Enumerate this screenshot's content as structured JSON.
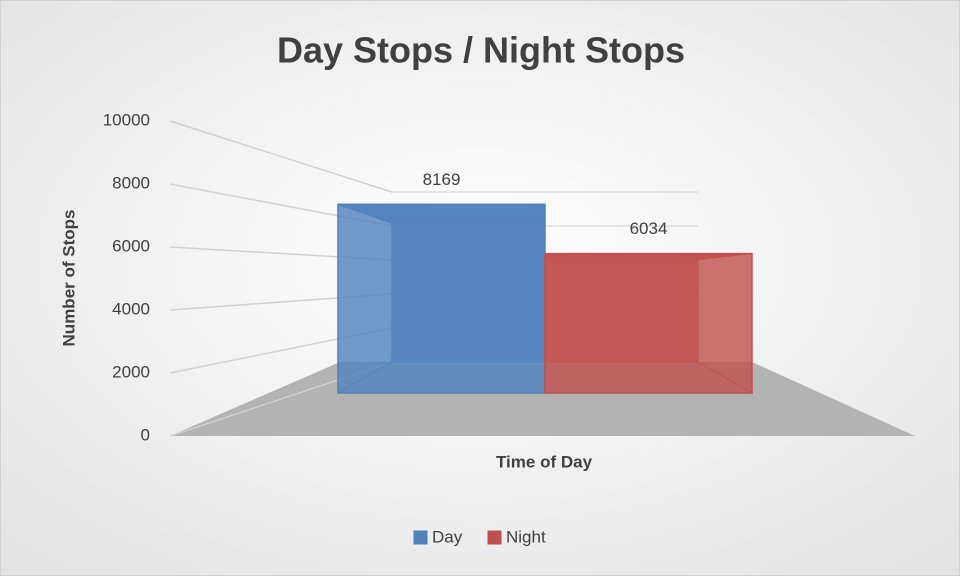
{
  "chart_data": {
    "type": "bar3d",
    "title": "Day Stops / Night Stops",
    "y_label": "Number of Stops",
    "x_label": "Time of Day",
    "categories": [
      null
    ],
    "series": [
      {
        "name": "Day",
        "color": "#4f81bd",
        "values": [
          8169
        ]
      },
      {
        "name": "Night",
        "color": "#c0504d",
        "values": [
          6034
        ]
      }
    ],
    "ylim": [
      0,
      10000
    ],
    "yticks": [
      0,
      2000,
      4000,
      6000,
      8000,
      10000
    ],
    "grid": true,
    "legend": "bottom"
  }
}
